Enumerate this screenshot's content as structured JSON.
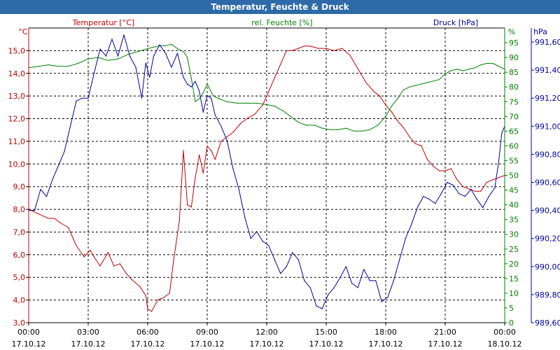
{
  "chart_data": {
    "type": "line",
    "title": "Temperatur, Feuchte & Druck",
    "x_ticks": [
      {
        "time": "00:00",
        "date": "17.10.12"
      },
      {
        "time": "03:00",
        "date": "17.10.12"
      },
      {
        "time": "06:00",
        "date": "17.10.12"
      },
      {
        "time": "09:00",
        "date": "17.10.12"
      },
      {
        "time": "12:00",
        "date": "17.10.12"
      },
      {
        "time": "15:00",
        "date": "17.10.12"
      },
      {
        "time": "18:00",
        "date": "17.10.12"
      },
      {
        "time": "21:00",
        "date": "17.10.12"
      },
      {
        "time": "00:00",
        "date": "18.10.12"
      }
    ],
    "xlim_hours": [
      0,
      24
    ],
    "axes": {
      "temperature": {
        "label": "Temperatur [°C]",
        "unit": "°C",
        "min": 3.0,
        "max": 16.0,
        "ticks": [
          "3,0",
          "4,0",
          "5,0",
          "6,0",
          "7,0",
          "8,0",
          "9,0",
          "10,0",
          "11,0",
          "12,0",
          "13,0",
          "14,0",
          "15,0"
        ],
        "color": "#c00000"
      },
      "humidity": {
        "label": "rel. Feuchte [%]",
        "unit": "%",
        "min": 0,
        "max": 100,
        "ticks": [
          "0",
          "5",
          "10",
          "15",
          "20",
          "25",
          "30",
          "35",
          "40",
          "45",
          "50",
          "55",
          "60",
          "65",
          "70",
          "75",
          "80",
          "85",
          "90",
          "95"
        ],
        "color": "#008000"
      },
      "pressure": {
        "label": "Druck [hPa]",
        "unit": "hPa",
        "min": 989.6,
        "max": 991.7,
        "ticks": [
          "989,60",
          "989,80",
          "990,00",
          "990,20",
          "990,40",
          "990,60",
          "990,80",
          "991,00",
          "991,20",
          "991,40",
          "991,60"
        ],
        "color": "#0000a0"
      }
    },
    "series": [
      {
        "name": "Temperatur",
        "axis": "temperature",
        "color": "#c00000",
        "x": [
          0,
          0.5,
          1,
          1.3,
          1.6,
          2,
          2.4,
          2.8,
          3.1,
          3.3,
          3.6,
          4,
          4.3,
          4.6,
          4.9,
          5.2,
          5.6,
          5.9,
          6.0,
          6.2,
          6.5,
          6.8,
          7.1,
          7.3,
          7.6,
          7.8,
          8.0,
          8.2,
          8.4,
          8.6,
          8.8,
          9.0,
          9.2,
          9.4,
          9.7,
          10.0,
          10.3,
          10.7,
          11,
          11.4,
          11.8,
          12.1,
          12.4,
          12.7,
          13,
          13.3,
          13.6,
          13.9,
          14.2,
          14.6,
          15,
          15.4,
          15.8,
          16.2,
          16.6,
          17.0,
          17.4,
          17.7,
          18.0,
          18.3,
          18.6,
          18.9,
          19.2,
          19.5,
          19.8,
          20.1,
          20.4,
          20.7,
          21.0,
          21.3,
          21.6,
          21.9,
          22.2,
          22.5,
          22.8,
          23.1,
          23.4,
          23.7,
          24.0
        ],
        "values": [
          8.0,
          7.8,
          7.6,
          7.6,
          7.4,
          7.2,
          6.4,
          5.9,
          6.2,
          5.9,
          5.5,
          6.1,
          5.5,
          5.6,
          5.2,
          4.9,
          4.6,
          4.2,
          3.6,
          3.5,
          4.0,
          4.1,
          4.3,
          5.7,
          7.5,
          10.6,
          8.2,
          8.1,
          9.4,
          10.4,
          9.6,
          10.8,
          10.6,
          10.2,
          11.0,
          11.2,
          11.4,
          11.8,
          12.0,
          12.2,
          12.6,
          13.2,
          13.8,
          14.4,
          15.0,
          15.0,
          15.1,
          15.2,
          15.2,
          15.1,
          15.1,
          15.0,
          15.1,
          14.8,
          14.2,
          13.6,
          13.2,
          13.0,
          12.6,
          12.3,
          11.9,
          11.6,
          11.2,
          10.9,
          10.8,
          10.2,
          9.9,
          9.7,
          9.7,
          9.8,
          9.3,
          9.0,
          8.9,
          8.8,
          8.8,
          9.2,
          9.3,
          9.4,
          9.5
        ]
      },
      {
        "name": "rel. Feuchte",
        "axis": "humidity",
        "color": "#008000",
        "x": [
          0,
          0.5,
          1,
          1.5,
          2,
          2.5,
          3,
          3.5,
          4,
          4.5,
          5,
          5.5,
          6,
          6.3,
          6.6,
          6.9,
          7.2,
          7.5,
          7.8,
          8.0,
          8.2,
          8.4,
          8.6,
          8.8,
          9.0,
          9.3,
          9.6,
          10,
          10.5,
          11,
          11.5,
          12,
          12.4,
          12.8,
          13.2,
          13.6,
          14,
          14.4,
          14.8,
          15.2,
          15.6,
          16,
          16.4,
          16.8,
          17.2,
          17.6,
          18.0,
          18.3,
          18.6,
          18.9,
          19.2,
          19.5,
          19.8,
          20.1,
          20.4,
          20.7,
          21.0,
          21.3,
          21.6,
          21.9,
          22.2,
          22.5,
          22.8,
          23.1,
          23.4,
          23.7,
          24.0
        ],
        "values": [
          86.5,
          87,
          87.5,
          87,
          87,
          88,
          89.5,
          90,
          89,
          89.5,
          91,
          92,
          93,
          93.5,
          94,
          94,
          94.5,
          93,
          92,
          90,
          83,
          75,
          76,
          78,
          81,
          77,
          76,
          75,
          74.5,
          74.5,
          74.5,
          74,
          73.5,
          72,
          70,
          68,
          67,
          67,
          66,
          65.5,
          65.5,
          66,
          65,
          65,
          65.5,
          67,
          70,
          73.5,
          76,
          79,
          80,
          80.5,
          81,
          81.5,
          82,
          82.5,
          84.5,
          85.5,
          86,
          85.5,
          86,
          86.5,
          87.5,
          88,
          88,
          87,
          86
        ]
      },
      {
        "name": "Druck",
        "axis": "pressure",
        "color": "#0000a0",
        "x": [
          0,
          0.3,
          0.6,
          0.9,
          1.2,
          1.5,
          1.8,
          2.1,
          2.4,
          2.7,
          3.0,
          3.3,
          3.6,
          3.9,
          4.2,
          4.5,
          4.8,
          5.1,
          5.4,
          5.7,
          5.9,
          6.1,
          6.3,
          6.6,
          6.9,
          7.2,
          7.5,
          7.8,
          8.0,
          8.2,
          8.4,
          8.6,
          8.8,
          9.0,
          9.2,
          9.4,
          9.7,
          10.0,
          10.3,
          10.6,
          10.9,
          11.2,
          11.5,
          11.8,
          12.1,
          12.4,
          12.7,
          13.0,
          13.3,
          13.6,
          13.9,
          14.2,
          14.5,
          14.8,
          15.1,
          15.4,
          15.7,
          16.0,
          16.3,
          16.6,
          16.9,
          17.2,
          17.5,
          17.8,
          18.1,
          18.4,
          18.7,
          19.0,
          19.3,
          19.6,
          19.9,
          20.2,
          20.5,
          20.8,
          21.1,
          21.4,
          21.7,
          22.0,
          22.3,
          22.6,
          22.9,
          23.2,
          23.5,
          23.7,
          23.85,
          24.0
        ],
        "values": [
          990.4,
          990.4,
          990.55,
          990.5,
          990.62,
          990.72,
          990.82,
          991.0,
          991.18,
          991.2,
          991.2,
          991.38,
          991.55,
          991.5,
          991.62,
          991.5,
          991.65,
          991.5,
          991.42,
          991.2,
          991.45,
          991.35,
          991.5,
          991.58,
          991.52,
          991.42,
          991.52,
          991.35,
          991.3,
          991.28,
          991.32,
          991.25,
          991.1,
          991.22,
          991.2,
          991.08,
          991.0,
          990.9,
          990.7,
          990.55,
          990.35,
          990.2,
          990.25,
          990.18,
          990.15,
          990.05,
          989.95,
          990.0,
          990.1,
          990.05,
          989.9,
          989.85,
          989.72,
          989.7,
          989.8,
          989.85,
          989.92,
          990.0,
          989.88,
          989.85,
          989.98,
          989.9,
          989.9,
          989.75,
          989.78,
          989.9,
          990.05,
          990.2,
          990.3,
          990.42,
          990.5,
          990.48,
          990.45,
          990.52,
          990.6,
          990.58,
          990.52,
          990.5,
          990.55,
          990.48,
          990.42,
          990.5,
          990.56,
          990.75,
          990.95,
          991.0
        ]
      }
    ]
  }
}
